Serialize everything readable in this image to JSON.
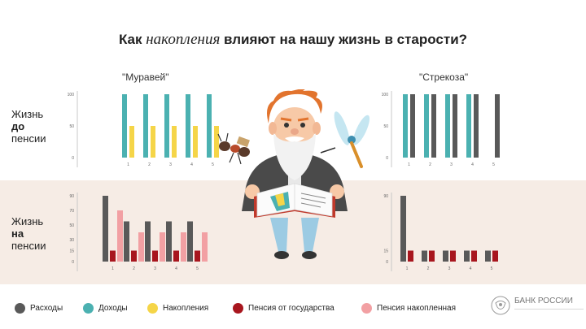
{
  "title": {
    "normal1": "Как",
    "italic": "накопления",
    "normal2": "влияют на нашу жизнь в старости?"
  },
  "groups": {
    "ant": "\"Муравей\"",
    "dragonfly": "\"Стрекоза\""
  },
  "rows": {
    "before": {
      "line1": "Жизнь",
      "line2": "до",
      "line3": "пенсии"
    },
    "after": {
      "line1": "Жизнь",
      "line2": "на",
      "line3": "пенсии"
    }
  },
  "legend": [
    {
      "label": "Расходы",
      "color": "#595959"
    },
    {
      "label": "Доходы",
      "color": "#4bb1b1"
    },
    {
      "label": "Накопления",
      "color": "#f5d548"
    },
    {
      "label": "Пенсия от государства",
      "color": "#a8161e"
    },
    {
      "label": "Пенсия накопленная",
      "color": "#f2a0a3"
    }
  ],
  "bank": {
    "name": "БАНК РОССИИ"
  },
  "icons": {
    "bank_logo": "eagle-emblem-icon",
    "illustration": "old-man-reading-book-illustration"
  },
  "chart_data": [
    {
      "type": "bar",
      "panel": "ant-before",
      "title": "\"Муравей\"",
      "categories": [
        "1",
        "2",
        "3",
        "4",
        "5"
      ],
      "yticks": [
        0,
        50,
        100
      ],
      "ylim": [
        0,
        100
      ],
      "series": [
        {
          "name": "Доходы",
          "color": "#4bb1b1",
          "values": [
            100,
            100,
            100,
            100,
            100
          ]
        },
        {
          "name": "Накопления",
          "color": "#f5d548",
          "values": [
            50,
            50,
            50,
            50,
            50
          ]
        }
      ]
    },
    {
      "type": "bar",
      "panel": "dragonfly-before",
      "title": "\"Стрекоза\"",
      "categories": [
        "1",
        "2",
        "3",
        "4",
        "5"
      ],
      "yticks": [
        0,
        50,
        100
      ],
      "ylim": [
        0,
        100
      ],
      "series": [
        {
          "name": "Доходы",
          "color": "#4bb1b1",
          "values": [
            100,
            100,
            100,
            100,
            0
          ]
        },
        {
          "name": "Расходы",
          "color": "#595959",
          "values": [
            100,
            100,
            100,
            100,
            100
          ]
        }
      ]
    },
    {
      "type": "bar",
      "panel": "ant-after",
      "categories": [
        "1",
        "2",
        "3",
        "4",
        "5"
      ],
      "yticks": [
        0,
        15,
        30,
        50,
        70,
        90
      ],
      "ylim": [
        0,
        90
      ],
      "series": [
        {
          "name": "Расходы",
          "color": "#595959",
          "values": [
            90,
            55,
            55,
            55,
            55
          ]
        },
        {
          "name": "Пенсия от государства",
          "color": "#a8161e",
          "values": [
            15,
            15,
            15,
            15,
            15
          ]
        },
        {
          "name": "Пенсия накопленная",
          "color": "#f2a0a3",
          "values": [
            70,
            40,
            40,
            40,
            40
          ]
        }
      ]
    },
    {
      "type": "bar",
      "panel": "dragonfly-after",
      "categories": [
        "1",
        "2",
        "3",
        "4",
        "5"
      ],
      "yticks": [
        0,
        15,
        90
      ],
      "ylim": [
        0,
        90
      ],
      "series": [
        {
          "name": "Расходы",
          "color": "#595959",
          "values": [
            90,
            15,
            15,
            15,
            15
          ]
        },
        {
          "name": "Пенсия от государства",
          "color": "#a8161e",
          "values": [
            15,
            15,
            15,
            15,
            15
          ]
        }
      ]
    }
  ]
}
